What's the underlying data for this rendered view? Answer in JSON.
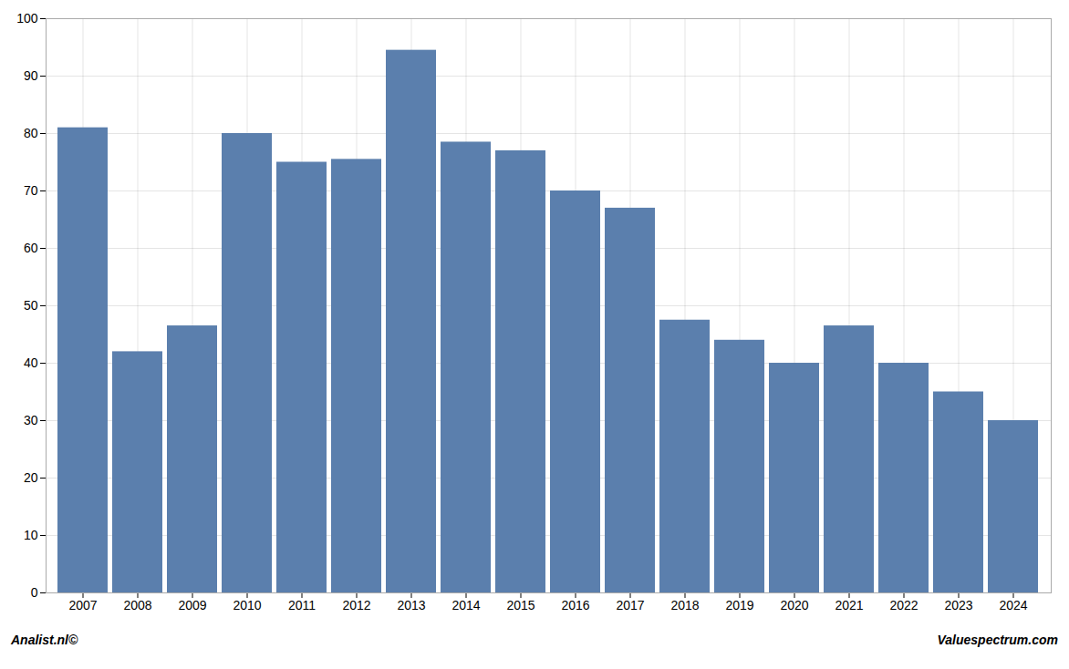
{
  "chart_data": {
    "type": "bar",
    "categories": [
      "2007",
      "2008",
      "2009",
      "2010",
      "2011",
      "2012",
      "2013",
      "2014",
      "2015",
      "2016",
      "2017",
      "2018",
      "2019",
      "2020",
      "2021",
      "2022",
      "2023",
      "2024"
    ],
    "values": [
      81,
      42,
      46.5,
      80,
      75,
      75.5,
      94.5,
      78.5,
      77,
      70,
      67,
      47.5,
      44,
      40,
      46.5,
      40,
      35,
      30
    ],
    "color": "#5b7fad",
    "ylim": [
      0,
      100
    ],
    "yticks": [
      0,
      10,
      20,
      30,
      40,
      50,
      60,
      70,
      80,
      90,
      100
    ],
    "grid": true,
    "annotations": [
      "Analist.nl©",
      "Valuespectrum.com"
    ]
  }
}
